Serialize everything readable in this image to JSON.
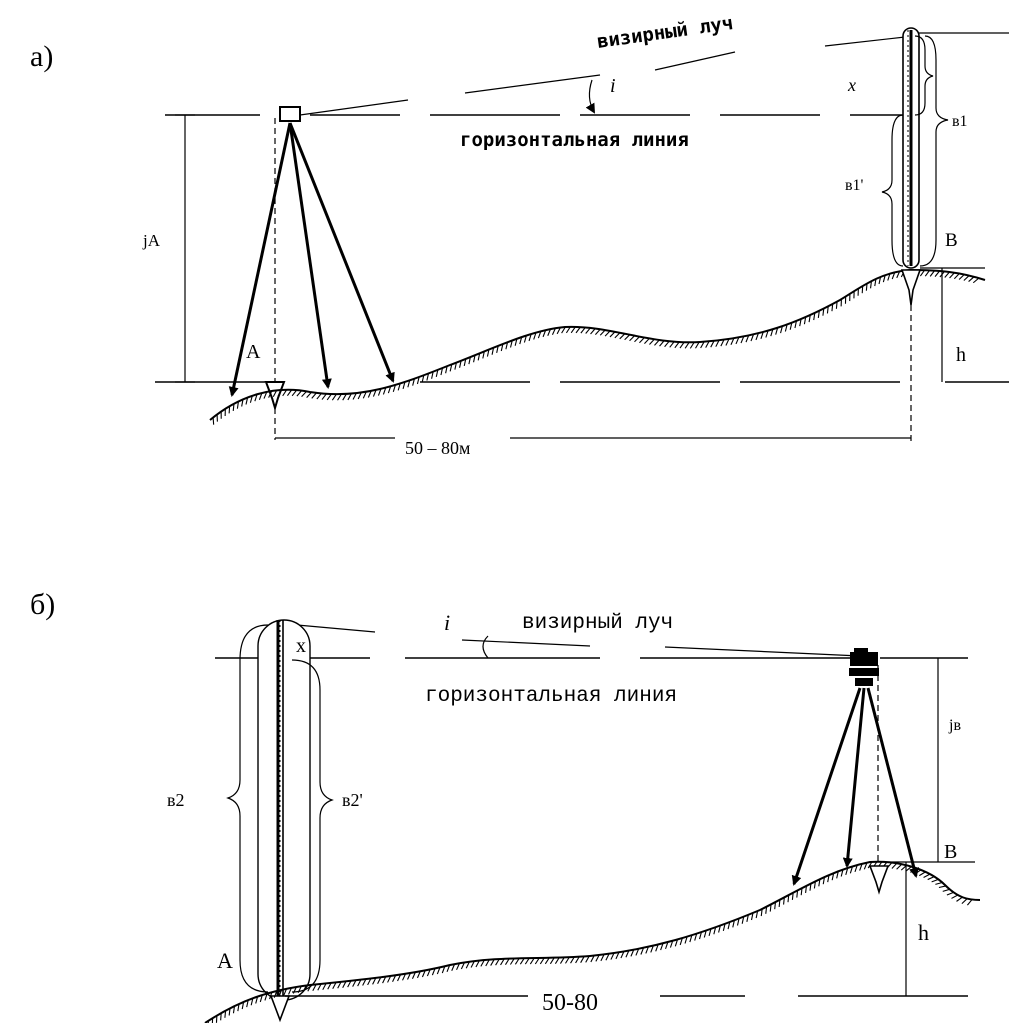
{
  "panel_a": {
    "letter": "а)",
    "sight_ray": "визирный луч",
    "horizontal_line": "горизонтальная линия",
    "angle": "i",
    "x_label": "x",
    "b1": "в1",
    "b1_prime": "в1'",
    "point_b": "B",
    "point_a": "A",
    "instrument_height": "jA",
    "h": "h",
    "distance": "50 – 80м"
  },
  "panel_b": {
    "letter": "б)",
    "sight_ray": "визирный луч",
    "horizontal_line": "горизонтальная линия",
    "angle": "i",
    "x_label": "x",
    "b2": "в2",
    "b2_prime": "в2'",
    "point_a": "A",
    "point_b": "B",
    "instrument_height": "jв",
    "h": "h",
    "distance": "50-80"
  }
}
